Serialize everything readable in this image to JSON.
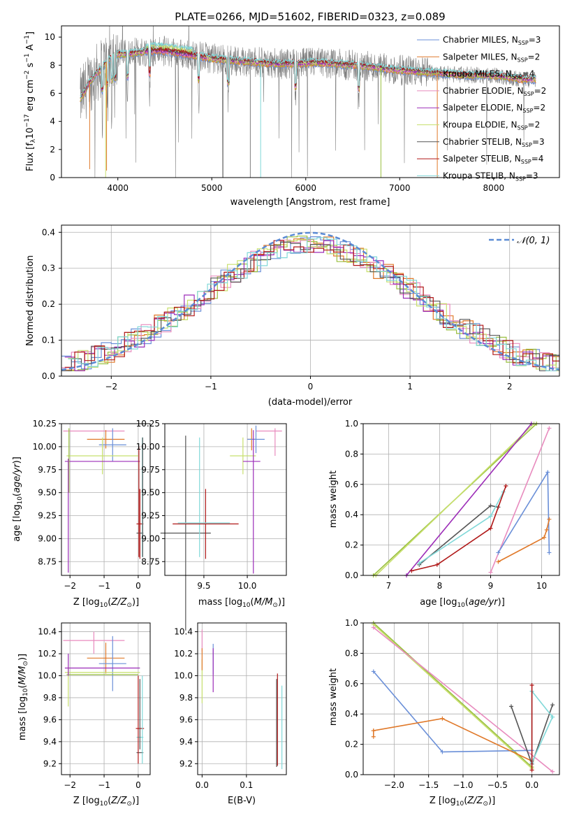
{
  "figure_title": "PLATE=0266, MJD=51602, FIBERID=0323, z=0.089",
  "colors": {
    "Chabrier MILES": "#6a8fd8",
    "Salpeter MILES": "#e0792a",
    "Kroupa MILES": "#9ac040",
    "Chabrier ELODIE": "#e88bbe",
    "Salpeter ELODIE": "#9c2cb8",
    "Kroupa ELODIE": "#c8e06e",
    "Chabrier STELIB": "#555555",
    "Salpeter STELIB": "#b01818",
    "Kroupa STELIB": "#80d8d8",
    "data": "#808080",
    "normal": "#5b8bd4"
  },
  "chart_data": [
    {
      "id": "spectrum",
      "type": "line",
      "title": "PLATE=0266, MJD=51602, FIBERID=0323, z=0.089",
      "xlabel": "wavelength [Angstrom, rest frame]",
      "ylabel": "Flux [f_λ 10^-17 erg cm^-2 s^-1 A^-1]",
      "xlim": [
        3400,
        8700
      ],
      "ylim": [
        0,
        10.8
      ],
      "xticks": [
        4000,
        5000,
        6000,
        7000,
        8000
      ],
      "yticks": [
        0,
        2,
        4,
        6,
        8,
        10
      ],
      "grid": false,
      "legend_position": "upper right",
      "legend": [
        {
          "name": "Chabrier MILES",
          "nssp": "3"
        },
        {
          "name": "Salpeter MILES",
          "nssp": "2"
        },
        {
          "name": "Kroupa MILES",
          "nssp": "4"
        },
        {
          "name": "Chabrier ELODIE",
          "nssp": "2"
        },
        {
          "name": "Salpeter ELODIE",
          "nssp": "2"
        },
        {
          "name": "Kroupa ELODIE",
          "nssp": "2"
        },
        {
          "name": "Chabrier STELIB",
          "nssp": "3"
        },
        {
          "name": "Salpeter STELIB",
          "nssp": "4"
        },
        {
          "name": "Kroupa STELIB",
          "nssp": "3"
        }
      ],
      "continuum": {
        "x": [
          3600,
          3650,
          3700,
          3800,
          3900,
          4000,
          4100,
          4300,
          4500,
          4700,
          4900,
          5100,
          5300,
          5500,
          5700,
          5900,
          6100,
          6300,
          6500,
          6700,
          6900,
          7100,
          7300,
          7500,
          7700,
          7900,
          8100,
          8300,
          8500
        ],
        "y": [
          5.6,
          6.2,
          6.8,
          7.6,
          8.4,
          8.8,
          8.8,
          9.0,
          9.0,
          8.8,
          8.6,
          8.4,
          8.3,
          8.2,
          8.1,
          8.1,
          8.2,
          8.1,
          8.0,
          7.9,
          7.7,
          7.6,
          7.5,
          7.4,
          7.3,
          7.3,
          7.2,
          7.0,
          7.0
        ]
      }
    },
    {
      "id": "residuals",
      "type": "area",
      "xlabel": "(data-model)/error",
      "ylabel": "Normed distribution",
      "xlim": [
        -2.5,
        2.5
      ],
      "ylim": [
        0,
        0.42
      ],
      "xticks": [
        -2,
        -1,
        0,
        1,
        2
      ],
      "yticks": [
        0.0,
        0.1,
        0.2,
        0.3,
        0.4
      ],
      "grid": true,
      "legend_position": "upper right",
      "legend_label": "𝒩(0, 1)"
    },
    {
      "id": "age_vs_Z",
      "type": "scatter",
      "xlabel": "Z [log10(Z/Z⊙)]",
      "ylabel": "age [log10(age/yr)]",
      "xlim": [
        -2.25,
        0.35
      ],
      "ylim": [
        8.6,
        10.25
      ],
      "xticks": [
        -2,
        -1,
        0
      ],
      "yticks": [
        8.75,
        9.0,
        9.25,
        9.5,
        9.75,
        10.0,
        10.25
      ],
      "grid": true
    },
    {
      "id": "age_vs_mass",
      "type": "scatter",
      "xlabel": "mass [log10(M/M⊙)]",
      "ylim": [
        8.6,
        10.25
      ],
      "xlim": [
        9.05,
        10.45
      ],
      "xticks": [
        9.5,
        10.0
      ],
      "yticks": [
        8.75,
        9.0,
        9.25,
        9.5,
        9.75,
        10.0,
        10.25
      ],
      "grid": true
    },
    {
      "id": "weight_vs_age",
      "type": "line",
      "xlabel": "age [log10(age/yr)]",
      "ylabel": "mass weight",
      "xlim": [
        6.5,
        10.35
      ],
      "ylim": [
        0,
        1
      ],
      "xticks": [
        7,
        8,
        9,
        10
      ],
      "yticks": [
        0.0,
        0.2,
        0.4,
        0.6,
        0.8,
        1.0
      ],
      "grid": true
    },
    {
      "id": "mass_vs_Z",
      "type": "scatter",
      "xlabel": "Z [log10(Z/Z⊙)]",
      "ylabel": "mass [log10(M/M⊙)]",
      "xlim": [
        -2.25,
        0.35
      ],
      "ylim": [
        9.1,
        10.48
      ],
      "xticks": [
        -2,
        -1,
        0
      ],
      "yticks": [
        9.2,
        9.4,
        9.6,
        9.8,
        10.0,
        10.2,
        10.4
      ],
      "grid": true
    },
    {
      "id": "mass_vs_ebv",
      "type": "scatter",
      "xlabel": "E(B-V)",
      "xlim": [
        -0.01,
        0.19
      ],
      "ylim": [
        9.1,
        10.48
      ],
      "xticks": [
        0.0,
        0.1
      ],
      "yticks": [
        9.2,
        9.4,
        9.6,
        9.8,
        10.0,
        10.2,
        10.4
      ],
      "grid": true
    },
    {
      "id": "weight_vs_Z",
      "type": "line",
      "xlabel": "Z [log10(Z/Z⊙)]",
      "ylabel": "mass weight",
      "xlim": [
        -2.45,
        0.4
      ],
      "ylim": [
        0,
        1
      ],
      "xticks": [
        -2.0,
        -1.5,
        -1.0,
        -0.5,
        0.0
      ],
      "yticks": [
        0.0,
        0.2,
        0.4,
        0.6,
        0.8,
        1.0
      ],
      "grid": true
    }
  ],
  "tick_labels": {
    "spectrum_x": [
      "4000",
      "5000",
      "6000",
      "7000",
      "8000"
    ],
    "spectrum_y": [
      "0",
      "2",
      "4",
      "6",
      "8",
      "10"
    ],
    "resid_x": [
      "−2",
      "−1",
      "0",
      "1",
      "2"
    ],
    "resid_y": [
      "0.0",
      "0.1",
      "0.2",
      "0.3",
      "0.4"
    ],
    "age_y": [
      "8.75",
      "9.00",
      "9.25",
      "9.50",
      "9.75",
      "10.00",
      "10.25"
    ],
    "Z_x": [
      "−2",
      "−1",
      "0"
    ],
    "mass_x": [
      "9.5",
      "10.0"
    ],
    "weight_y": [
      "0.0",
      "0.2",
      "0.4",
      "0.6",
      "0.8",
      "1.0"
    ],
    "wage_x": [
      "7",
      "8",
      "9",
      "10"
    ],
    "mass_y": [
      "9.2",
      "9.4",
      "9.6",
      "9.8",
      "10.0",
      "10.2",
      "10.4"
    ],
    "ebv_x": [
      "0.0",
      "0.1"
    ],
    "wZ_x": [
      "−2.0",
      "−1.5",
      "−1.0",
      "−0.5",
      "0.0"
    ]
  }
}
